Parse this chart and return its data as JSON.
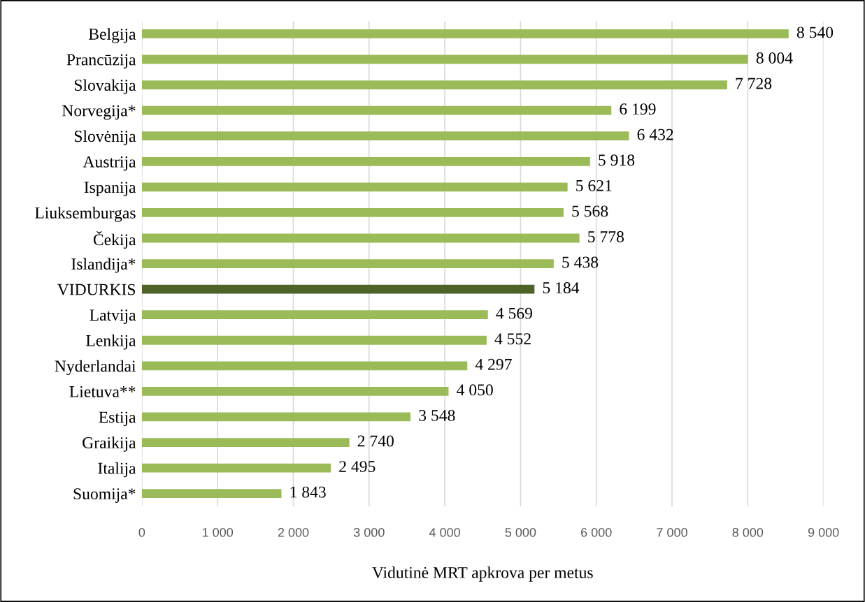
{
  "chart_data": {
    "type": "bar",
    "orientation": "horizontal",
    "xlabel": "Vidutinė MRT apkrova per metus",
    "categories": [
      "Belgija",
      "Prancūzija",
      "Slovakija",
      "Norvegija*",
      "Slovėnija",
      "Austrija",
      "Ispanija",
      "Liuksemburgas",
      "Čekija",
      "Islandija*",
      "VIDURKIS",
      "Latvija",
      "Lenkija",
      "Nyderlandai",
      "Lietuva**",
      "Estija",
      "Graikija",
      "Italija",
      "Suomija*"
    ],
    "values": [
      8540,
      8004,
      7728,
      6199,
      6432,
      5918,
      5621,
      5568,
      5778,
      5438,
      5184,
      4569,
      4552,
      4297,
      4050,
      3548,
      2740,
      2495,
      1843
    ],
    "value_labels": [
      "8 540",
      "8 004",
      "7 728",
      "6 199",
      "6 432",
      "5 918",
      "5 621",
      "5 568",
      "5 778",
      "5 438",
      "5 184",
      "4 569",
      "4 552",
      "4 297",
      "4 050",
      "3 548",
      "2 740",
      "2 495",
      "1 843"
    ],
    "colors": [
      "#9bbb59",
      "#9bbb59",
      "#9bbb59",
      "#9bbb59",
      "#9bbb59",
      "#9bbb59",
      "#9bbb59",
      "#9bbb59",
      "#9bbb59",
      "#9bbb59",
      "#4f6228",
      "#9bbb59",
      "#9bbb59",
      "#9bbb59",
      "#9bbb59",
      "#9bbb59",
      "#9bbb59",
      "#9bbb59",
      "#9bbb59"
    ],
    "xlim": [
      0,
      9000
    ],
    "xticks": [
      0,
      {
        "value": 1000,
        "label": "1 000"
      },
      {
        "value": 2000,
        "label": "2 000"
      },
      {
        "value": 3000,
        "label": "3 000"
      },
      {
        "value": 4000,
        "label": "4 000"
      },
      {
        "value": 5000,
        "label": "5 000"
      },
      {
        "value": 6000,
        "label": "6 000"
      },
      {
        "value": 7000,
        "label": "7 000"
      },
      {
        "value": 8000,
        "label": "8 000"
      },
      {
        "value": 9000,
        "label": "9 000"
      }
    ],
    "grid": "x",
    "legend": false
  }
}
